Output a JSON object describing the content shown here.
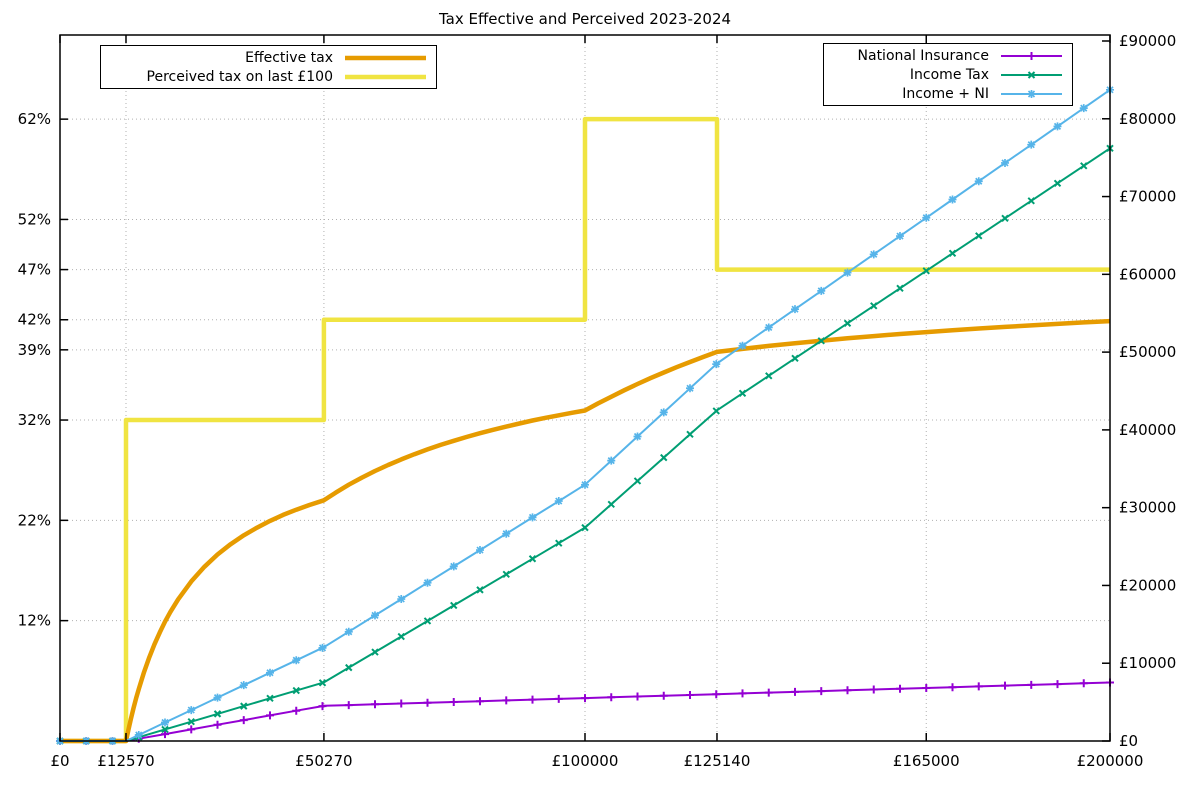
{
  "title": "Tax Effective and Perceived 2023-2024",
  "chart_data": {
    "type": "line",
    "title": "Tax Effective and Perceived 2023-2024",
    "grid": "dotted",
    "x_axis": {
      "range": [
        0,
        200000
      ],
      "ticks": [
        {
          "label": "£0",
          "value": 0
        },
        {
          "label": "£12570",
          "value": 12570
        },
        {
          "label": "£50270",
          "value": 50270
        },
        {
          "label": "£100000",
          "value": 100000
        },
        {
          "label": "£125140",
          "value": 125140
        },
        {
          "label": "£165000",
          "value": 165000
        },
        {
          "label": "£200000",
          "value": 200000
        }
      ],
      "gridlines": [
        12570,
        50270,
        100000,
        125140,
        165000
      ]
    },
    "y_left_axis": {
      "unit": "percent",
      "range": [
        0,
        70.4
      ],
      "ticks": [
        {
          "label": "12%",
          "value": 12
        },
        {
          "label": "22%",
          "value": 22
        },
        {
          "label": "32%",
          "value": 32
        },
        {
          "label": "39%",
          "value": 39
        },
        {
          "label": "42%",
          "value": 42
        },
        {
          "label": "47%",
          "value": 47
        },
        {
          "label": "52%",
          "value": 52
        },
        {
          "label": "62%",
          "value": 62
        }
      ]
    },
    "y_right_axis": {
      "unit": "gbp",
      "range": [
        0,
        90000
      ],
      "ticks": [
        {
          "label": "£0",
          "value": 0
        },
        {
          "label": "£10000",
          "value": 10000
        },
        {
          "label": "£20000",
          "value": 20000
        },
        {
          "label": "£30000",
          "value": 30000
        },
        {
          "label": "£40000",
          "value": 40000
        },
        {
          "label": "£50000",
          "value": 50000
        },
        {
          "label": "£60000",
          "value": 60000
        },
        {
          "label": "£70000",
          "value": 70000
        },
        {
          "label": "£80000",
          "value": 80000
        },
        {
          "label": "£90000",
          "value": 90000
        }
      ]
    },
    "series": [
      {
        "name": "Perceived tax on last £100",
        "axis": "left",
        "color": "#f0e442",
        "line_width": 4.5,
        "marker": "none",
        "points": [
          [
            0,
            0
          ],
          [
            12570,
            0
          ],
          [
            12570,
            32
          ],
          [
            50270,
            32
          ],
          [
            50270,
            42
          ],
          [
            100000,
            42
          ],
          [
            100000,
            62
          ],
          [
            125140,
            62
          ],
          [
            125140,
            47
          ],
          [
            200000,
            47
          ]
        ]
      },
      {
        "name": "Effective tax",
        "axis": "left",
        "color": "#e69b00",
        "line_width": 4.5,
        "marker": "none",
        "points": [
          [
            0,
            0
          ],
          [
            12570,
            0
          ],
          [
            13000,
            1.06
          ],
          [
            13500,
            2.2
          ],
          [
            14000,
            3.27
          ],
          [
            14500,
            4.26
          ],
          [
            15000,
            5.18
          ],
          [
            16000,
            6.86
          ],
          [
            17000,
            8.34
          ],
          [
            18000,
            9.65
          ],
          [
            19000,
            10.83
          ],
          [
            20000,
            11.89
          ],
          [
            21000,
            12.85
          ],
          [
            22500,
            14.12
          ],
          [
            25000,
            15.91
          ],
          [
            27500,
            17.37
          ],
          [
            30000,
            18.59
          ],
          [
            32500,
            19.62
          ],
          [
            35000,
            20.51
          ],
          [
            37500,
            21.27
          ],
          [
            40000,
            21.94
          ],
          [
            42500,
            22.54
          ],
          [
            45000,
            23.06
          ],
          [
            47500,
            23.53
          ],
          [
            50270,
            24.0
          ],
          [
            52500,
            24.76
          ],
          [
            55000,
            25.55
          ],
          [
            57500,
            26.26
          ],
          [
            60000,
            26.92
          ],
          [
            62500,
            27.52
          ],
          [
            65000,
            28.08
          ],
          [
            67500,
            28.59
          ],
          [
            70000,
            29.07
          ],
          [
            72500,
            29.52
          ],
          [
            75000,
            29.93
          ],
          [
            77500,
            30.32
          ],
          [
            80000,
            30.69
          ],
          [
            82500,
            31.03
          ],
          [
            85000,
            31.35
          ],
          [
            87500,
            31.66
          ],
          [
            90000,
            31.95
          ],
          [
            92500,
            32.22
          ],
          [
            95000,
            32.47
          ],
          [
            97500,
            32.72
          ],
          [
            100000,
            32.95
          ],
          [
            102500,
            33.66
          ],
          [
            105000,
            34.33
          ],
          [
            107500,
            34.98
          ],
          [
            110000,
            35.59
          ],
          [
            112500,
            36.18
          ],
          [
            115000,
            36.74
          ],
          [
            117500,
            37.28
          ],
          [
            120000,
            37.79
          ],
          [
            122500,
            38.29
          ],
          [
            125140,
            38.79
          ],
          [
            130000,
            39.09
          ],
          [
            135000,
            39.39
          ],
          [
            140000,
            39.66
          ],
          [
            145000,
            39.91
          ],
          [
            150000,
            40.15
          ],
          [
            155000,
            40.37
          ],
          [
            160000,
            40.58
          ],
          [
            165000,
            40.77
          ],
          [
            170000,
            40.95
          ],
          [
            175000,
            41.13
          ],
          [
            180000,
            41.29
          ],
          [
            185000,
            41.44
          ],
          [
            190000,
            41.59
          ],
          [
            195000,
            41.73
          ],
          [
            200000,
            41.86
          ]
        ]
      },
      {
        "name": "National Insurance",
        "axis": "right",
        "color": "#9400d3",
        "line_width": 2,
        "marker": "plus",
        "marker_every": 5000,
        "points": [
          [
            0,
            0
          ],
          [
            5000,
            0
          ],
          [
            10000,
            0
          ],
          [
            12570,
            0
          ],
          [
            15000,
            291.6
          ],
          [
            20000,
            891.6
          ],
          [
            25000,
            1491.6
          ],
          [
            30000,
            2091.6
          ],
          [
            35000,
            2691.6
          ],
          [
            40000,
            3291.6
          ],
          [
            45000,
            3891.6
          ],
          [
            50000,
            4491.6
          ],
          [
            50270,
            4524
          ],
          [
            55000,
            4618.6
          ],
          [
            60000,
            4718.6
          ],
          [
            65000,
            4818.6
          ],
          [
            70000,
            4918.6
          ],
          [
            75000,
            5018.6
          ],
          [
            80000,
            5118.6
          ],
          [
            85000,
            5218.6
          ],
          [
            90000,
            5318.6
          ],
          [
            95000,
            5418.6
          ],
          [
            100000,
            5518.6
          ],
          [
            105000,
            5618.6
          ],
          [
            110000,
            5718.6
          ],
          [
            115000,
            5818.6
          ],
          [
            120000,
            5918.6
          ],
          [
            125000,
            6018.6
          ],
          [
            130000,
            6118.6
          ],
          [
            135000,
            6218.6
          ],
          [
            140000,
            6318.6
          ],
          [
            145000,
            6418.6
          ],
          [
            150000,
            6518.6
          ],
          [
            155000,
            6618.6
          ],
          [
            160000,
            6718.6
          ],
          [
            165000,
            6818.6
          ],
          [
            170000,
            6918.6
          ],
          [
            175000,
            7018.6
          ],
          [
            180000,
            7118.6
          ],
          [
            185000,
            7218.6
          ],
          [
            190000,
            7318.6
          ],
          [
            195000,
            7418.6
          ],
          [
            200000,
            7518.6
          ]
        ]
      },
      {
        "name": "Income Tax",
        "axis": "right",
        "color": "#009e73",
        "line_width": 2,
        "marker": "cross",
        "marker_every": 5000,
        "points": [
          [
            0,
            0
          ],
          [
            5000,
            0
          ],
          [
            10000,
            0
          ],
          [
            12570,
            0
          ],
          [
            15000,
            486
          ],
          [
            20000,
            1486
          ],
          [
            25000,
            2486
          ],
          [
            30000,
            3486
          ],
          [
            35000,
            4486
          ],
          [
            40000,
            5486
          ],
          [
            45000,
            6486
          ],
          [
            50000,
            7486
          ],
          [
            50270,
            7540
          ],
          [
            55000,
            9432
          ],
          [
            60000,
            11432
          ],
          [
            65000,
            13432
          ],
          [
            70000,
            15432
          ],
          [
            75000,
            17432
          ],
          [
            80000,
            19432
          ],
          [
            85000,
            21432
          ],
          [
            90000,
            23432
          ],
          [
            95000,
            25432
          ],
          [
            100000,
            27432
          ],
          [
            105000,
            30432
          ],
          [
            110000,
            33432
          ],
          [
            115000,
            36432
          ],
          [
            120000,
            39432
          ],
          [
            125000,
            42432
          ],
          [
            125140,
            42516
          ],
          [
            130000,
            44703
          ],
          [
            135000,
            46953
          ],
          [
            140000,
            49203
          ],
          [
            145000,
            51453
          ],
          [
            150000,
            53703
          ],
          [
            155000,
            55953
          ],
          [
            160000,
            58203
          ],
          [
            165000,
            60453
          ],
          [
            170000,
            62703
          ],
          [
            175000,
            64953
          ],
          [
            180000,
            67203
          ],
          [
            185000,
            69453
          ],
          [
            190000,
            71703
          ],
          [
            195000,
            73953
          ],
          [
            200000,
            76203
          ]
        ]
      },
      {
        "name": "Income + NI",
        "axis": "right",
        "color": "#56b4e9",
        "line_width": 2,
        "marker": "asterisk",
        "marker_every": 5000,
        "points": [
          [
            0,
            0
          ],
          [
            5000,
            0
          ],
          [
            10000,
            0
          ],
          [
            12570,
            0
          ],
          [
            15000,
            777.6
          ],
          [
            20000,
            2377.6
          ],
          [
            25000,
            3977.6
          ],
          [
            30000,
            5577.6
          ],
          [
            35000,
            7177.6
          ],
          [
            40000,
            8777.6
          ],
          [
            45000,
            10377.6
          ],
          [
            50000,
            11977.6
          ],
          [
            50270,
            12064
          ],
          [
            55000,
            14050.6
          ],
          [
            60000,
            16150.6
          ],
          [
            65000,
            18250.6
          ],
          [
            70000,
            20350.6
          ],
          [
            75000,
            22450.6
          ],
          [
            80000,
            24550.6
          ],
          [
            85000,
            26650.6
          ],
          [
            90000,
            28750.6
          ],
          [
            95000,
            30850.6
          ],
          [
            100000,
            32950.6
          ],
          [
            105000,
            36050.6
          ],
          [
            110000,
            39150.6
          ],
          [
            115000,
            42250.6
          ],
          [
            120000,
            45350.6
          ],
          [
            125000,
            48450.6
          ],
          [
            125140,
            48537.4
          ],
          [
            130000,
            50821.6
          ],
          [
            135000,
            53171.6
          ],
          [
            140000,
            55521.6
          ],
          [
            145000,
            57871.6
          ],
          [
            150000,
            60221.6
          ],
          [
            155000,
            62571.6
          ],
          [
            160000,
            64921.6
          ],
          [
            165000,
            67271.6
          ],
          [
            170000,
            69621.6
          ],
          [
            175000,
            71971.6
          ],
          [
            180000,
            74321.6
          ],
          [
            185000,
            76671.6
          ],
          [
            190000,
            79021.6
          ],
          [
            195000,
            81371.6
          ],
          [
            200000,
            83721.6
          ]
        ]
      }
    ],
    "legend_left": {
      "entries": [
        "Effective tax",
        "Perceived tax on last £100"
      ]
    },
    "legend_right": {
      "entries": [
        "National Insurance",
        "Income Tax",
        "Income + NI"
      ]
    }
  },
  "style": {
    "grid_color": "#b0b0b0",
    "border_color": "#000000",
    "background": "#ffffff"
  }
}
